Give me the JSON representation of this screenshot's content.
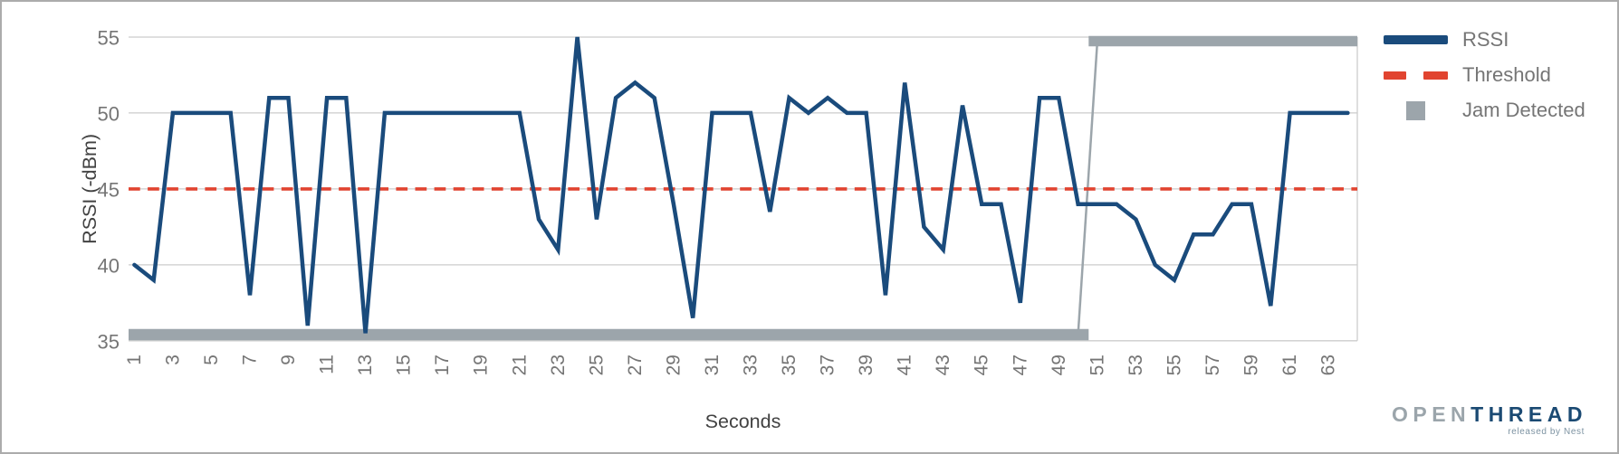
{
  "chart_data": {
    "type": "line",
    "title": "",
    "xlabel": "Seconds",
    "ylabel": "RSSI (-dBm)",
    "x_ticks": [
      1,
      3,
      5,
      7,
      9,
      11,
      13,
      15,
      17,
      19,
      21,
      23,
      25,
      27,
      29,
      31,
      33,
      35,
      37,
      39,
      41,
      43,
      45,
      47,
      49,
      51,
      53,
      55,
      57,
      59,
      61,
      63
    ],
    "y_ticks": [
      35,
      40,
      45,
      50,
      55
    ],
    "xlim": [
      0.7,
      64.5
    ],
    "ylim": [
      35,
      55
    ],
    "grid": true,
    "legend_position": "right",
    "series": [
      {
        "name": "RSSI",
        "type": "line",
        "color": "#1A4B7C",
        "x": [
          1,
          2,
          3,
          4,
          5,
          6,
          7,
          8,
          9,
          10,
          11,
          12,
          13,
          14,
          15,
          16,
          17,
          18,
          19,
          20,
          21,
          22,
          23,
          24,
          25,
          26,
          27,
          28,
          29,
          30,
          31,
          32,
          33,
          34,
          35,
          36,
          37,
          38,
          39,
          40,
          41,
          42,
          43,
          44,
          45,
          46,
          47,
          48,
          49,
          50,
          51,
          52,
          53,
          54,
          55,
          56,
          57,
          58,
          59,
          60,
          61,
          62,
          63,
          64
        ],
        "values": [
          40,
          39,
          50,
          50,
          50,
          50,
          38,
          51,
          51,
          36,
          51,
          51,
          35.5,
          50,
          50,
          50,
          50,
          50,
          50,
          50,
          50,
          43,
          41,
          55,
          43,
          51,
          52,
          51,
          44,
          36.5,
          50,
          50,
          50,
          43.5,
          51,
          50,
          51,
          50,
          50,
          38,
          52,
          42.5,
          41,
          50.5,
          44,
          44,
          37.5,
          51,
          51,
          44,
          44,
          44,
          43,
          40,
          39,
          42,
          42,
          44,
          44,
          37.3,
          50,
          50,
          50,
          50
        ]
      },
      {
        "name": "Threshold",
        "type": "dashed-line",
        "color": "#E14430",
        "value": 45
      },
      {
        "name": "Jam Detected",
        "type": "thick-step-line",
        "color": "#9CA5AB",
        "off_level": 35,
        "on_level": 55,
        "off_span_seconds": [
          1,
          50
        ],
        "on_span_seconds": [
          51,
          64.5
        ]
      }
    ]
  },
  "legend": {
    "items": [
      {
        "label": "RSSI",
        "swatch": "solid-line",
        "color": "#1A4B7C"
      },
      {
        "label": "Threshold",
        "swatch": "dashed-line",
        "color": "#E14430"
      },
      {
        "label": "Jam Detected",
        "swatch": "square",
        "color": "#9CA5AB"
      }
    ]
  },
  "branding": {
    "logo_primary": "OPEN",
    "logo_secondary": "THREAD",
    "logo_tagline": "released by Nest"
  },
  "colors": {
    "rssi_line": "#1A4B7C",
    "threshold_line": "#E14430",
    "jam_bar": "#9CA5AB",
    "gridline": "#CCCCCC",
    "tick_text": "#757575",
    "axis_title_text": "#424242"
  }
}
